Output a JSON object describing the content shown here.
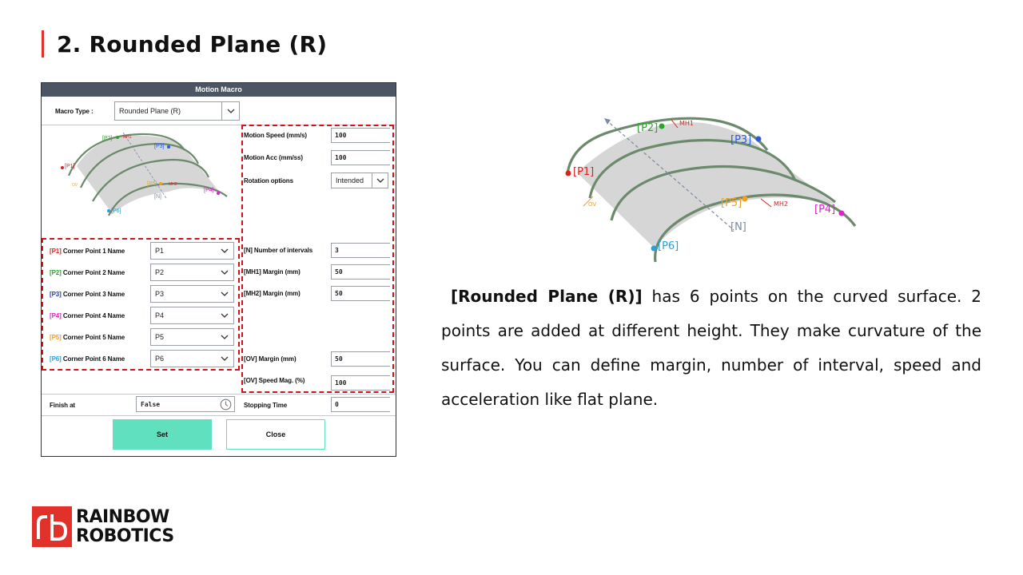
{
  "slide": {
    "title": "2. Rounded Plane (R)"
  },
  "dialog": {
    "header": "Motion Macro",
    "macro_type_label": "Macro Type :",
    "macro_type_value": "Rounded Plane (R)",
    "thumbnail_labels": {
      "p1": "[P1]",
      "p2": "[P2]",
      "p3": "[P3]",
      "p4": "[P4]",
      "p5": "[P5]",
      "p6": "[P6]",
      "mh1": "MH1",
      "mh2": "MH2",
      "n": "[N]",
      "ov": "OV"
    },
    "corner_points": [
      {
        "tag": "[P1]",
        "label": "Corner Point 1 Name",
        "value": "P1",
        "color": "#e0201c"
      },
      {
        "tag": "[P2]",
        "label": "Corner Point 2 Name",
        "value": "P2",
        "color": "#2aa52a"
      },
      {
        "tag": "[P3]",
        "label": "Corner Point 3 Name",
        "value": "P3",
        "color": "#2a3ab5"
      },
      {
        "tag": "[P4]",
        "label": "Corner Point 4 Name",
        "value": "P4",
        "color": "#e020d0"
      },
      {
        "tag": "[P5]",
        "label": "Corner Point 5 Name",
        "value": "P5",
        "color": "#f0a020"
      },
      {
        "tag": "[P6]",
        "label": "Corner Point 6 Name",
        "value": "P6",
        "color": "#2aa0d8"
      }
    ],
    "motion_speed": {
      "label": "Motion Speed (mm/s)",
      "value": "100"
    },
    "motion_acc": {
      "label": "Motion Acc (mm/ss)",
      "value": "100"
    },
    "rotation": {
      "label": "Rotation options",
      "value": "Intended"
    },
    "intervals": {
      "label": "[N] Number of intervals",
      "value": "3"
    },
    "mh1_margin": {
      "label": "[MH1] Margin (mm)",
      "value": "50"
    },
    "mh2_margin": {
      "label": "[MH2] Margin (mm)",
      "value": "50"
    },
    "ov_margin": {
      "label": "[OV] Margin (mm)",
      "value": "50"
    },
    "ov_speed": {
      "label": "[OV] Speed Mag. (%)",
      "value": "100"
    },
    "finish_at": {
      "label": "Finish at",
      "value": "False"
    },
    "stopping_time": {
      "label": "Stopping Time",
      "value": "0"
    },
    "set_label": "Set",
    "close_label": "Close"
  },
  "diagram": {
    "labels": {
      "p1": "[P1]",
      "p2": "[P2]",
      "p3": "[P3]",
      "p4": "[P4]",
      "p5": "[P5]",
      "p6": "[P6]",
      "mh1": "MH1",
      "mh2": "MH2",
      "n": "[N]",
      "ov": "OV"
    }
  },
  "description": {
    "bold": "[Rounded Plane (R)]",
    "text": " has 6 points on the curved surface. 2 points are added at different height. They make curvature of the surface. You can define margin, number of interval, speed and acceleration like flat plane."
  },
  "logo": {
    "line1": "RAINBOW",
    "line2": "ROBOTICS"
  },
  "colors": {
    "accent_red": "#e0322a",
    "dash_red": "#d0121b",
    "set_green": "#61e0c0",
    "header_gray": "#4b5563"
  }
}
